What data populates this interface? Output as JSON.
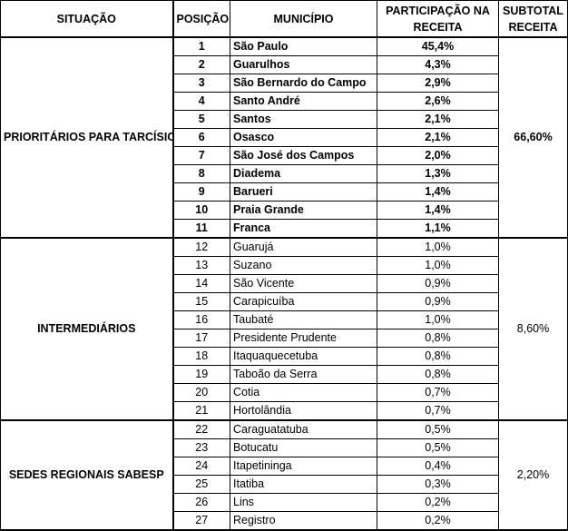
{
  "headers": {
    "situacao": "SITUAÇÃO",
    "posicao": "POSIÇÃO",
    "municipio": "MUNICÍPIO",
    "participacao": "PARTICIPAÇÃO NA RECEITA",
    "subtotal": "SUBTOTAL RECEITA"
  },
  "groups": [
    {
      "situacao": "PRIORITÁRIOS PARA TARCÍSIO",
      "subtotal": "66,60%",
      "bold": true,
      "rows": [
        {
          "pos": "1",
          "mun": "São Paulo",
          "pct": "45,4%"
        },
        {
          "pos": "2",
          "mun": "Guarulhos",
          "pct": "4,3%"
        },
        {
          "pos": "3",
          "mun": "São Bernardo do Campo",
          "pct": "2,9%"
        },
        {
          "pos": "4",
          "mun": "Santo André",
          "pct": "2,6%"
        },
        {
          "pos": "5",
          "mun": "Santos",
          "pct": "2,1%"
        },
        {
          "pos": "6",
          "mun": "Osasco",
          "pct": "2,1%"
        },
        {
          "pos": "7",
          "mun": "São José dos Campos",
          "pct": "2,0%"
        },
        {
          "pos": "8",
          "mun": "Diadema",
          "pct": "1,3%"
        },
        {
          "pos": "9",
          "mun": "Barueri",
          "pct": "1,4%"
        },
        {
          "pos": "10",
          "mun": "Praia Grande",
          "pct": "1,4%"
        },
        {
          "pos": "11",
          "mun": "Franca",
          "pct": "1,1%"
        }
      ]
    },
    {
      "situacao": "INTERMEDIÁRIOS",
      "subtotal": "8,60%",
      "bold": false,
      "rows": [
        {
          "pos": "12",
          "mun": "Guarujá",
          "pct": "1,0%"
        },
        {
          "pos": "13",
          "mun": "Suzano",
          "pct": "1,0%"
        },
        {
          "pos": "14",
          "mun": "São Vicente",
          "pct": "0,9%"
        },
        {
          "pos": "15",
          "mun": "Carapicuíba",
          "pct": "0,9%"
        },
        {
          "pos": "16",
          "mun": "Taubaté",
          "pct": "1,0%"
        },
        {
          "pos": "17",
          "mun": "Presidente Prudente",
          "pct": "0,8%"
        },
        {
          "pos": "18",
          "mun": "Itaquaquecetuba",
          "pct": "0,8%"
        },
        {
          "pos": "19",
          "mun": "Taboão da Serra",
          "pct": "0,8%"
        },
        {
          "pos": "20",
          "mun": "Cotia",
          "pct": "0,7%"
        },
        {
          "pos": "21",
          "mun": "Hortolândia",
          "pct": "0,7%"
        }
      ]
    },
    {
      "situacao": "SEDES REGIONAIS SABESP",
      "subtotal": "2,20%",
      "bold": false,
      "rows": [
        {
          "pos": "22",
          "mun": "Caraguatatuba",
          "pct": "0,5%"
        },
        {
          "pos": "23",
          "mun": "Botucatu",
          "pct": "0,5%"
        },
        {
          "pos": "24",
          "mun": "Itapetininga",
          "pct": "0,4%"
        },
        {
          "pos": "25",
          "mun": "Itatiba",
          "pct": "0,3%"
        },
        {
          "pos": "26",
          "mun": "Lins",
          "pct": "0,2%"
        },
        {
          "pos": "27",
          "mun": "Registro",
          "pct": "0,2%"
        }
      ]
    }
  ]
}
